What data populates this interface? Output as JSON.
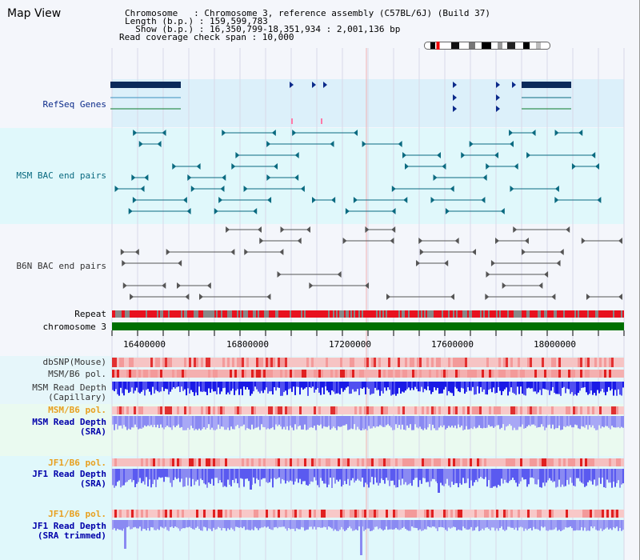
{
  "window": {
    "title": "Map View"
  },
  "info": {
    "chromosome": "Chromosome   : Chromosome 3, reference assembly (C57BL/6J) (Build 37)",
    "length": "Length (b.p.) : 159,599,783",
    "show": "  Show (b.p.) : 16,350,799-18,351,934 : 2,001,136 bp",
    "coverage": "Read coverage check span : 10,000"
  },
  "tracks": {
    "refseq": {
      "label": "RefSeq Genes",
      "color": "#0b2a8a"
    },
    "msm_bac": {
      "label": "MSM BAC end pairs",
      "color": "#0a6a80"
    },
    "b6n_bac": {
      "label": "B6N BAC end pairs",
      "color": "#333333"
    },
    "repeat": {
      "label": "Repeat"
    },
    "chromosome": {
      "label": "chromosome 3"
    },
    "dbsnp": {
      "label": "dbSNP(Mouse)"
    },
    "msm_b6_pol": {
      "label": "MSM/B6 pol."
    },
    "msm_depth_cap": {
      "label": "MSM Read Depth",
      "sub": "(Capillary)"
    },
    "msm_b6_pol2": {
      "label": "MSM/B6 pol.",
      "color": "#e8a020"
    },
    "msm_depth_sra": {
      "label": "MSM Read Depth",
      "sub": "(SRA)",
      "color": "#0000aa"
    },
    "jf1_b6_pol": {
      "label": "JF1/B6 pol.",
      "color": "#e8a020"
    },
    "jf1_depth_sra": {
      "label": "JF1 Read Depth",
      "sub": "(SRA)",
      "color": "#0000aa"
    },
    "jf1_b6_pol2": {
      "label": "JF1/B6 pol.",
      "color": "#e8a020"
    },
    "jf1_depth_trim": {
      "label": "JF1 Read Depth",
      "sub": "(SRA trimmed)",
      "color": "#0000aa"
    }
  },
  "ruler": {
    "ticks": [
      "16400000",
      "16800000",
      "17200000",
      "17600000",
      "18000000"
    ]
  },
  "colors": {
    "refseq_bg": "#dcf0fa",
    "msm_bg": "#e0f8fb",
    "repeat": "#e8111e",
    "chromosome": "#007000",
    "snp": "#f28080",
    "depth": "#2a2ae0",
    "depth_light": "#8c8cf0"
  }
}
